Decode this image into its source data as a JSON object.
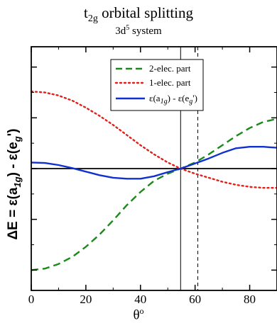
{
  "chart_data": {
    "type": "line",
    "title_main": "t",
    "title_sub_index": "2g",
    "title_rest": " orbital splitting",
    "subtitle_pre": "3d",
    "subtitle_sup": "5",
    "subtitle_post": " system",
    "xlabel_base": "θ",
    "xlabel_sup": "o",
    "ylabel_prefix": "ΔE = ε(a",
    "ylabel_sub1": "1g",
    "ylabel_mid": ") - ε(e",
    "ylabel_sub2": "g",
    "ylabel_suffix": "')",
    "xlim": [
      0,
      90
    ],
    "ylim": [
      -1.2,
      1.2
    ],
    "xticks": [
      0,
      20,
      40,
      60,
      80
    ],
    "xtick_labels": [
      "0",
      "20",
      "40",
      "60",
      "80"
    ],
    "vlines": [
      {
        "x": 54.7,
        "style": "solid"
      },
      {
        "x": 61.0,
        "style": "dashed"
      }
    ],
    "legend_position": "top-center",
    "series": [
      {
        "name": "2-elec. part",
        "color": "#1a8a1a",
        "style": "dashed",
        "x": [
          0,
          5,
          10,
          15,
          20,
          25,
          30,
          35,
          40,
          45,
          50,
          54.7,
          60,
          65,
          70,
          75,
          80,
          85,
          90
        ],
        "y": [
          -1.0,
          -0.985,
          -0.94,
          -0.87,
          -0.77,
          -0.65,
          -0.51,
          -0.36,
          -0.23,
          -0.12,
          -0.05,
          0.0,
          0.06,
          0.14,
          0.23,
          0.32,
          0.4,
          0.46,
          0.49
        ]
      },
      {
        "name": "1-elec. part",
        "color": "#e0201a",
        "style": "dotted",
        "x": [
          0,
          5,
          10,
          15,
          20,
          25,
          30,
          35,
          40,
          45,
          50,
          54.7,
          60,
          65,
          70,
          75,
          80,
          85,
          90
        ],
        "y": [
          0.76,
          0.75,
          0.72,
          0.67,
          0.6,
          0.52,
          0.43,
          0.33,
          0.23,
          0.14,
          0.06,
          0.0,
          -0.05,
          -0.09,
          -0.13,
          -0.16,
          -0.18,
          -0.19,
          -0.19
        ]
      },
      {
        "name_pre": "ε(a",
        "name_sub1": "1g",
        "name_mid": ") - ε(e",
        "name_sub2": "g",
        "name_suffix": "')",
        "color": "#1030d0",
        "style": "solid",
        "x": [
          0,
          5,
          10,
          15,
          20,
          25,
          30,
          35,
          40,
          45,
          50,
          54.7,
          60,
          65,
          70,
          75,
          80,
          85,
          90
        ],
        "y": [
          0.06,
          0.055,
          0.035,
          0.005,
          -0.03,
          -0.065,
          -0.09,
          -0.1,
          -0.1,
          -0.075,
          -0.035,
          0.0,
          0.05,
          0.1,
          0.155,
          0.2,
          0.215,
          0.215,
          0.205
        ]
      }
    ]
  }
}
